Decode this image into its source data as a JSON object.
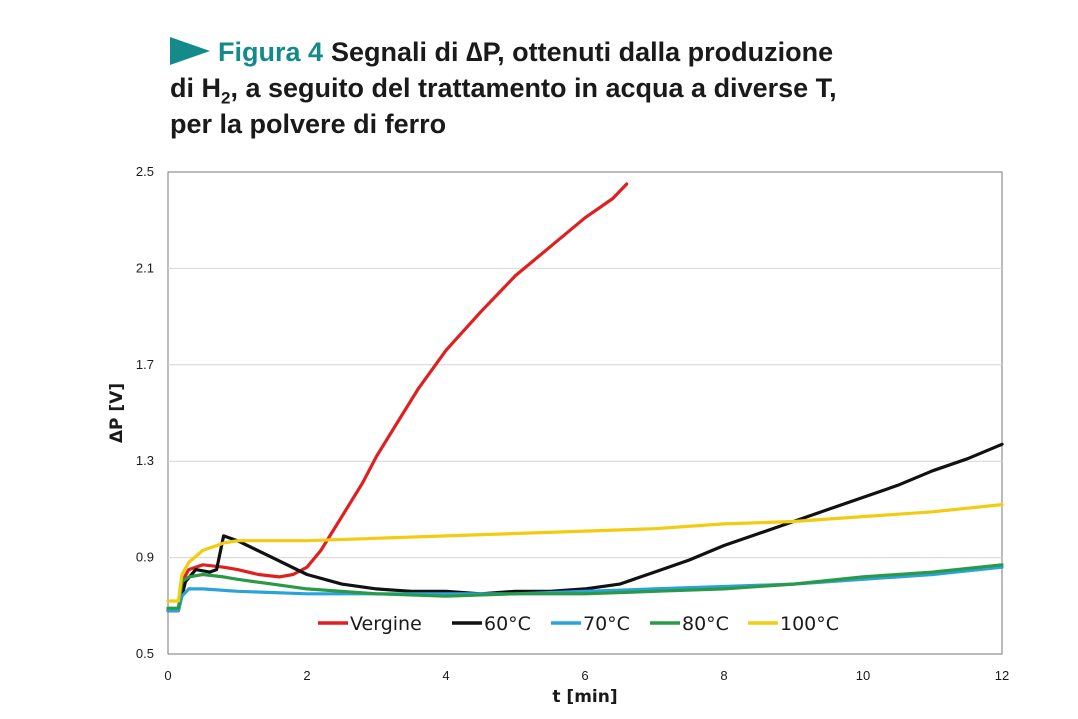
{
  "figure": {
    "label": "Figura 4",
    "title_line1": "Segnali di ∆P, ottenuti dalla produzione",
    "title_line2_pre": "di H",
    "title_line2_sub": "2",
    "title_line2_post": ", a seguito del trattamento in acqua a diverse T,",
    "title_line3": "per la polvere di ferro",
    "accent_color": "#148a8a"
  },
  "chart_data": {
    "type": "line",
    "xlabel": "t [min]",
    "ylabel": "ΔP [V]",
    "xlim": [
      0,
      12
    ],
    "ylim": [
      0.5,
      2.5
    ],
    "x_ticks": [
      0,
      2,
      4,
      6,
      8,
      10,
      12
    ],
    "y_ticks": [
      0.5,
      0.9,
      1.3,
      1.7,
      2.1,
      2.5
    ],
    "grid": "horizontal",
    "legend_position": "bottom-inside",
    "series": [
      {
        "name": "Vergine",
        "color": "#e02020",
        "x": [
          0,
          0.15,
          0.2,
          0.3,
          0.5,
          0.8,
          1.0,
          1.3,
          1.6,
          1.8,
          2.0,
          2.2,
          2.5,
          2.8,
          3.0,
          3.3,
          3.6,
          4.0,
          4.5,
          5.0,
          5.5,
          6.0,
          6.4,
          6.6
        ],
        "y": [
          0.68,
          0.68,
          0.8,
          0.85,
          0.87,
          0.86,
          0.85,
          0.83,
          0.82,
          0.83,
          0.86,
          0.93,
          1.07,
          1.21,
          1.32,
          1.46,
          1.6,
          1.76,
          1.92,
          2.07,
          2.19,
          2.31,
          2.39,
          2.45
        ]
      },
      {
        "name": "60°C",
        "color": "#111111",
        "x": [
          0,
          0.15,
          0.25,
          0.4,
          0.6,
          0.7,
          0.8,
          1.0,
          1.5,
          2.0,
          2.5,
          3.0,
          3.5,
          4.0,
          4.5,
          5.0,
          5.5,
          6.0,
          6.5,
          7.0,
          7.5,
          8.0,
          8.5,
          9.0,
          9.5,
          10.0,
          10.5,
          11.0,
          11.5,
          12.0
        ],
        "y": [
          0.68,
          0.68,
          0.8,
          0.85,
          0.84,
          0.85,
          0.99,
          0.97,
          0.9,
          0.83,
          0.79,
          0.77,
          0.76,
          0.76,
          0.75,
          0.76,
          0.76,
          0.77,
          0.79,
          0.84,
          0.89,
          0.95,
          1.0,
          1.05,
          1.1,
          1.15,
          1.2,
          1.26,
          1.31,
          1.37
        ]
      },
      {
        "name": "70°C",
        "color": "#2aa3dc",
        "x": [
          0,
          0.15,
          0.2,
          0.3,
          0.5,
          1.0,
          2.0,
          3.0,
          4.0,
          5.0,
          6.0,
          7.0,
          8.0,
          9.0,
          10.0,
          11.0,
          12.0
        ],
        "y": [
          0.68,
          0.68,
          0.74,
          0.77,
          0.77,
          0.76,
          0.75,
          0.75,
          0.75,
          0.75,
          0.76,
          0.77,
          0.78,
          0.79,
          0.81,
          0.83,
          0.86
        ]
      },
      {
        "name": "80°C",
        "color": "#2a9a48",
        "x": [
          0,
          0.15,
          0.2,
          0.3,
          0.5,
          0.8,
          1.0,
          1.5,
          2.0,
          3.0,
          4.0,
          5.0,
          6.0,
          7.0,
          8.0,
          9.0,
          10.0,
          11.0,
          12.0
        ],
        "y": [
          0.69,
          0.69,
          0.8,
          0.82,
          0.83,
          0.82,
          0.81,
          0.79,
          0.77,
          0.75,
          0.74,
          0.75,
          0.75,
          0.76,
          0.77,
          0.79,
          0.82,
          0.84,
          0.87
        ]
      },
      {
        "name": "100°C",
        "color": "#f2cc10",
        "x": [
          0,
          0.15,
          0.2,
          0.3,
          0.5,
          0.8,
          1.0,
          2.0,
          3.0,
          4.0,
          5.0,
          6.0,
          7.0,
          8.0,
          9.0,
          10.0,
          11.0,
          12.0
        ],
        "y": [
          0.72,
          0.72,
          0.83,
          0.88,
          0.93,
          0.96,
          0.97,
          0.97,
          0.98,
          0.99,
          1.0,
          1.01,
          1.02,
          1.04,
          1.05,
          1.07,
          1.09,
          1.12
        ]
      }
    ]
  }
}
